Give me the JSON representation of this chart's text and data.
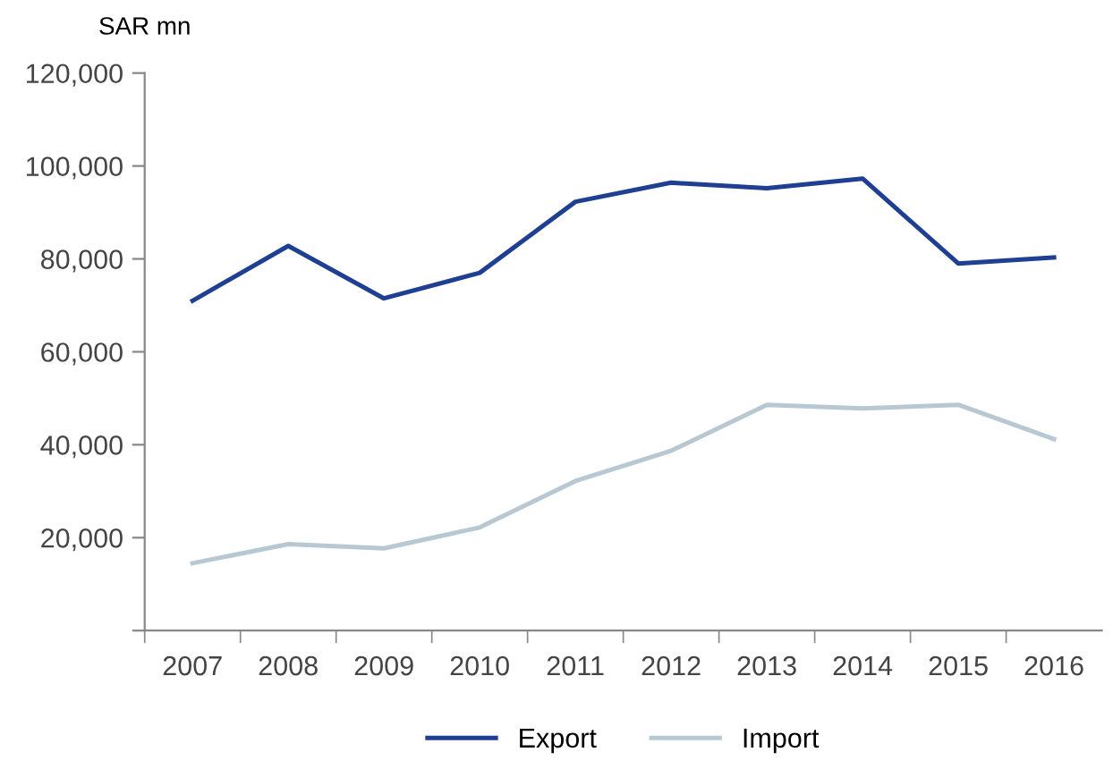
{
  "chart_data": {
    "type": "line",
    "ylabel": "SAR mn",
    "categories": [
      "2007",
      "2008",
      "2009",
      "2010",
      "2011",
      "2012",
      "2013",
      "2014",
      "2015",
      "2016"
    ],
    "series": [
      {
        "name": "Export",
        "color": "#1f3f93",
        "values": [
          71000,
          82800,
          71500,
          77000,
          92300,
          96400,
          95200,
          97300,
          79000,
          80300
        ]
      },
      {
        "name": "Import",
        "color": "#b8c8d2",
        "values": [
          14500,
          18600,
          17700,
          22200,
          32200,
          38700,
          48600,
          47800,
          48600,
          41200
        ]
      }
    ],
    "ylim": [
      0,
      120000
    ],
    "yticks": [
      {
        "value": 0,
        "label": null
      },
      {
        "value": 20000,
        "label": "20,000"
      },
      {
        "value": 40000,
        "label": "40,000"
      },
      {
        "value": 60000,
        "label": "60,000"
      },
      {
        "value": 80000,
        "label": "80,000"
      },
      {
        "value": 100000,
        "label": "100,000"
      },
      {
        "value": 120000,
        "label": "120,000"
      }
    ],
    "grid": false,
    "legend": "bottom",
    "marker": "none",
    "line_style": "solid"
  }
}
